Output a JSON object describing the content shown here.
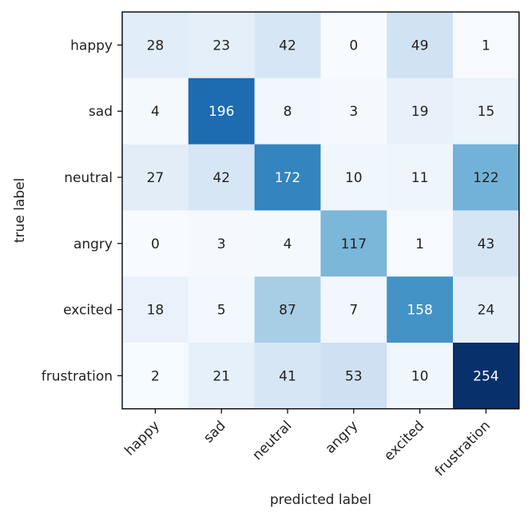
{
  "chart_data": {
    "type": "heatmap",
    "title": "",
    "xlabel": "predicted label",
    "ylabel": "true label",
    "x_categories": [
      "happy",
      "sad",
      "neutral",
      "angry",
      "excited",
      "frustration"
    ],
    "y_categories": [
      "happy",
      "sad",
      "neutral",
      "angry",
      "excited",
      "frustration"
    ],
    "values": [
      [
        28,
        23,
        42,
        0,
        49,
        1
      ],
      [
        4,
        196,
        8,
        3,
        19,
        15
      ],
      [
        27,
        42,
        172,
        10,
        11,
        122
      ],
      [
        0,
        3,
        4,
        117,
        1,
        43
      ],
      [
        18,
        5,
        87,
        7,
        158,
        24
      ],
      [
        2,
        21,
        41,
        53,
        10,
        254
      ]
    ],
    "value_range": [
      0,
      254
    ],
    "colormap": "Blues",
    "grid": false,
    "legend": "none"
  }
}
